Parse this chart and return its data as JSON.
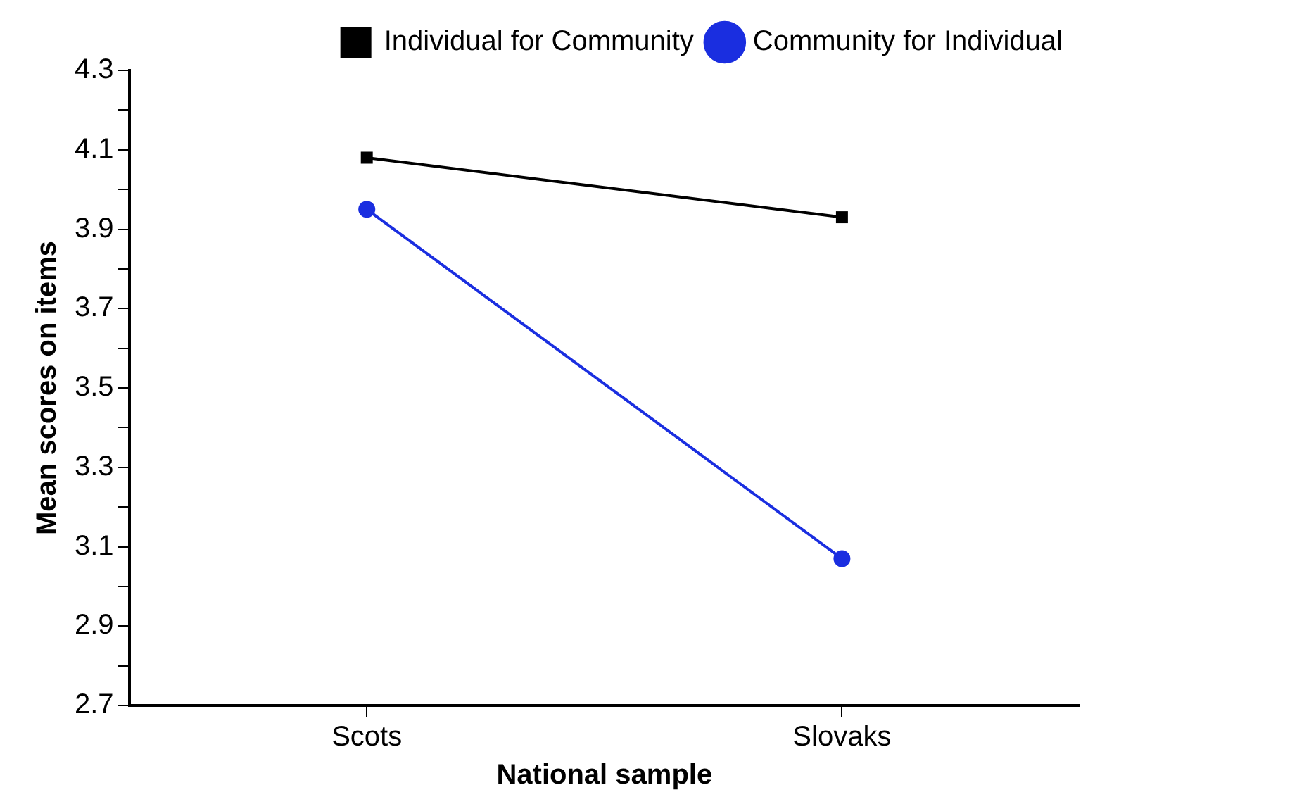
{
  "chart_data": {
    "type": "line",
    "xlabel": "National sample",
    "ylabel": "Mean scores on items",
    "categories": [
      "Scots",
      "Slovaks"
    ],
    "series": [
      {
        "name": "Individual for Community",
        "color": "#000000",
        "marker": "square",
        "values": [
          4.08,
          3.93
        ]
      },
      {
        "name": "Community for Individual",
        "color": "#1a2ee0",
        "marker": "circle",
        "values": [
          3.95,
          3.07
        ]
      }
    ],
    "ylim": [
      2.7,
      4.3
    ],
    "yticks": [
      2.7,
      {
        "value": 2.8,
        "label": null
      },
      2.9,
      {
        "value": 3.0,
        "label": null
      },
      3.1,
      {
        "value": 3.2,
        "label": null
      },
      3.3,
      {
        "value": 3.4,
        "label": null
      },
      3.5,
      {
        "value": 3.6,
        "label": null
      },
      3.7,
      {
        "value": 3.8,
        "label": null
      },
      3.9,
      {
        "value": 4.0,
        "label": null
      },
      4.1,
      {
        "value": 4.2,
        "label": null
      },
      4.3
    ],
    "grid": false,
    "legend": "top right",
    "line_style": "solid"
  }
}
